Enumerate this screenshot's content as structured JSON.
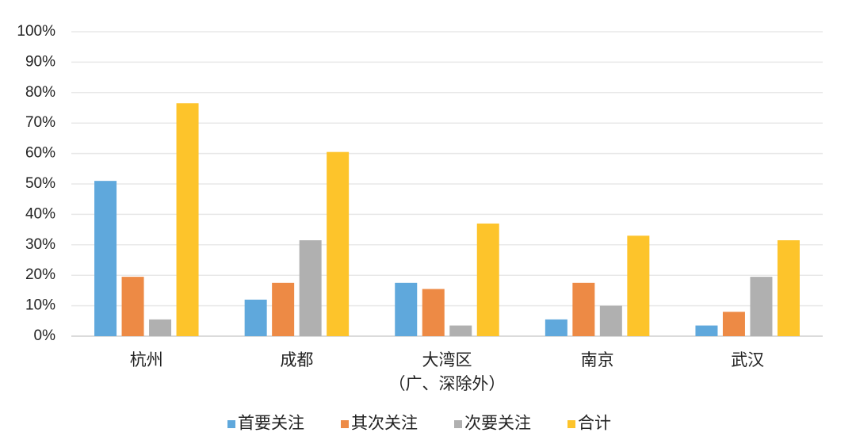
{
  "chart_data": {
    "type": "bar",
    "categories": [
      "杭州",
      "成都",
      "大湾区\n（广、深除外）",
      "南京",
      "武汉"
    ],
    "series": [
      {
        "name": "首要关注",
        "color": "#5fa8dc",
        "values": [
          51,
          12,
          17.5,
          5.5,
          3.5
        ]
      },
      {
        "name": "其次关注",
        "color": "#ed8a45",
        "values": [
          19.5,
          17.5,
          15.5,
          17.5,
          8
        ]
      },
      {
        "name": "次要关注",
        "color": "#b0b0b0",
        "values": [
          5.5,
          31.5,
          3.5,
          10,
          19.5
        ]
      },
      {
        "name": "合计",
        "color": "#fdc42b",
        "values": [
          76.5,
          60.5,
          37,
          33,
          31.5
        ]
      }
    ],
    "ylim": [
      0,
      100
    ],
    "yticks": [
      {
        "value": 0,
        "label": "0%"
      },
      {
        "value": 10,
        "label": "10%"
      },
      {
        "value": 20,
        "label": "20%"
      },
      {
        "value": 30,
        "label": "30%"
      },
      {
        "value": 40,
        "label": "40%"
      },
      {
        "value": 50,
        "label": "50%"
      },
      {
        "value": 60,
        "label": "60%"
      },
      {
        "value": 70,
        "label": "70%"
      },
      {
        "value": 80,
        "label": "80%"
      },
      {
        "value": 90,
        "label": "90%"
      },
      {
        "value": 100,
        "label": "100%"
      }
    ],
    "grid": true,
    "legend": "bottom"
  }
}
